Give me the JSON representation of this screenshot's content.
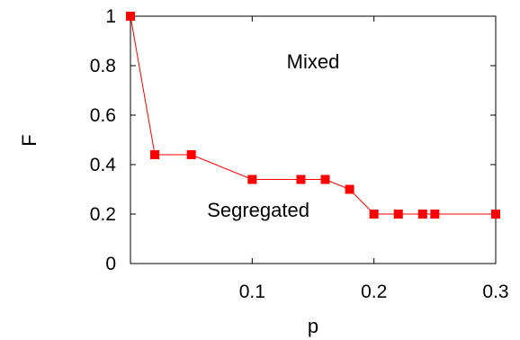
{
  "chart_data": {
    "type": "line",
    "title": "",
    "xlabel": "p",
    "ylabel": "F",
    "xlim": [
      0,
      0.3
    ],
    "ylim": [
      0,
      1
    ],
    "x_ticks": [
      {
        "value": 0.1,
        "label": "0.1"
      },
      {
        "value": 0.2,
        "label": "0.2"
      },
      {
        "value": 0.3,
        "label": "0.3"
      }
    ],
    "y_ticks": [
      {
        "value": 0,
        "label": "0"
      },
      {
        "value": 0.2,
        "label": "0.2"
      },
      {
        "value": 0.4,
        "label": "0.4"
      },
      {
        "value": 0.6,
        "label": "0.6"
      },
      {
        "value": 0.8,
        "label": "0.8"
      },
      {
        "value": 1,
        "label": "1"
      }
    ],
    "grid": false,
    "legend": "none",
    "series": [
      {
        "color": "#ff0000",
        "marker": "square",
        "x": [
          0.0,
          0.02,
          0.05,
          0.1,
          0.14,
          0.16,
          0.18,
          0.2,
          0.22,
          0.24,
          0.25,
          0.3
        ],
        "y": [
          1.0,
          0.44,
          0.44,
          0.34,
          0.34,
          0.34,
          0.3,
          0.2,
          0.2,
          0.2,
          0.2,
          0.2
        ]
      }
    ],
    "annotations": [
      {
        "text": "Mixed",
        "x": 0.15,
        "y": 0.79
      },
      {
        "text": "Segregated",
        "x": 0.105,
        "y": 0.19
      }
    ]
  }
}
